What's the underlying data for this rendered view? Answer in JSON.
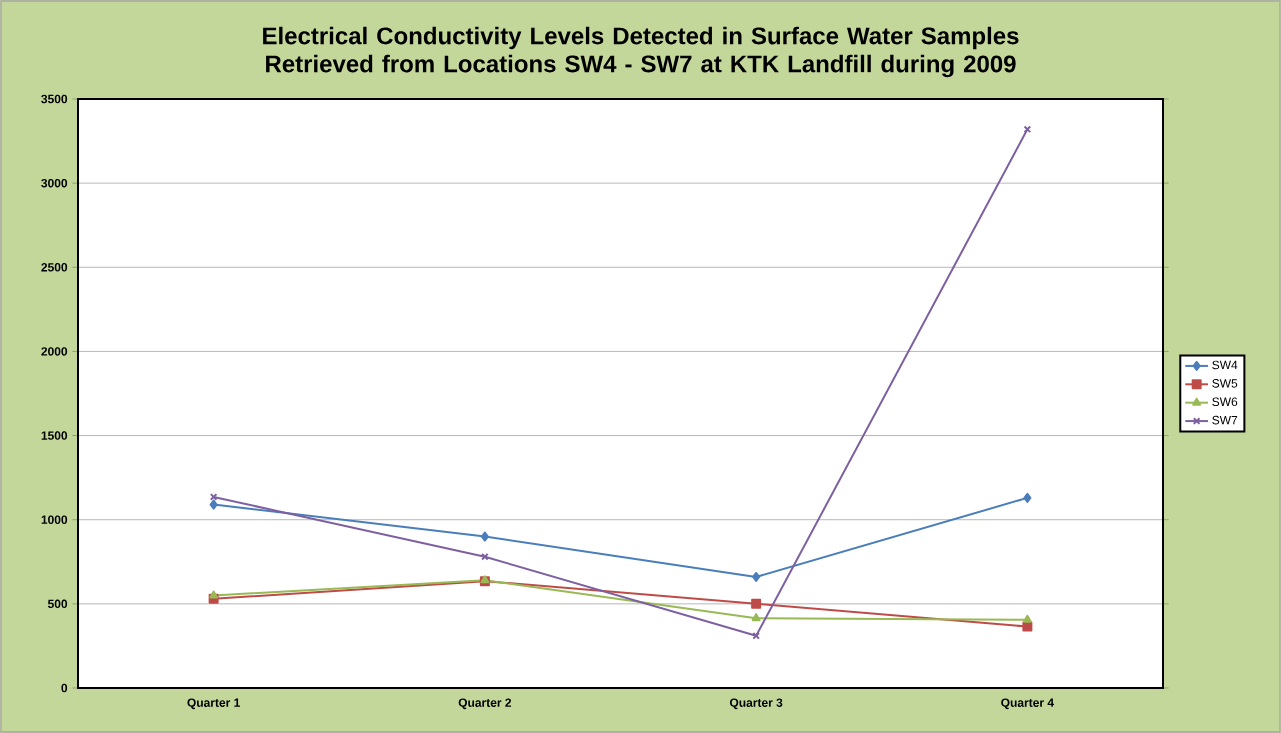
{
  "chart_data": {
    "type": "line",
    "title": "Electrical Conductivity Levels Detected in Surface Water Samples Retrieved from Locations SW4 - SW7 at KTK Landfill during 2009",
    "categories": [
      "Quarter 1",
      "Quarter 2",
      "Quarter 3",
      "Quarter 4"
    ],
    "series": [
      {
        "name": "SW4",
        "color": "#4a7ebb",
        "marker": "diamond",
        "values": [
          1090,
          900,
          660,
          1130
        ]
      },
      {
        "name": "SW5",
        "color": "#be4b48",
        "marker": "square",
        "values": [
          530,
          635,
          500,
          365
        ]
      },
      {
        "name": "SW6",
        "color": "#98b954",
        "marker": "triangle",
        "values": [
          550,
          640,
          415,
          405
        ]
      },
      {
        "name": "SW7",
        "color": "#7d60a0",
        "marker": "cross",
        "values": [
          1135,
          780,
          310,
          3320
        ]
      }
    ],
    "ylim": [
      0,
      3500
    ],
    "yticks": [
      0,
      500,
      1000,
      1500,
      2000,
      2500,
      3000,
      3500
    ],
    "grid": "y",
    "legend": "right",
    "line_style": "solid"
  }
}
